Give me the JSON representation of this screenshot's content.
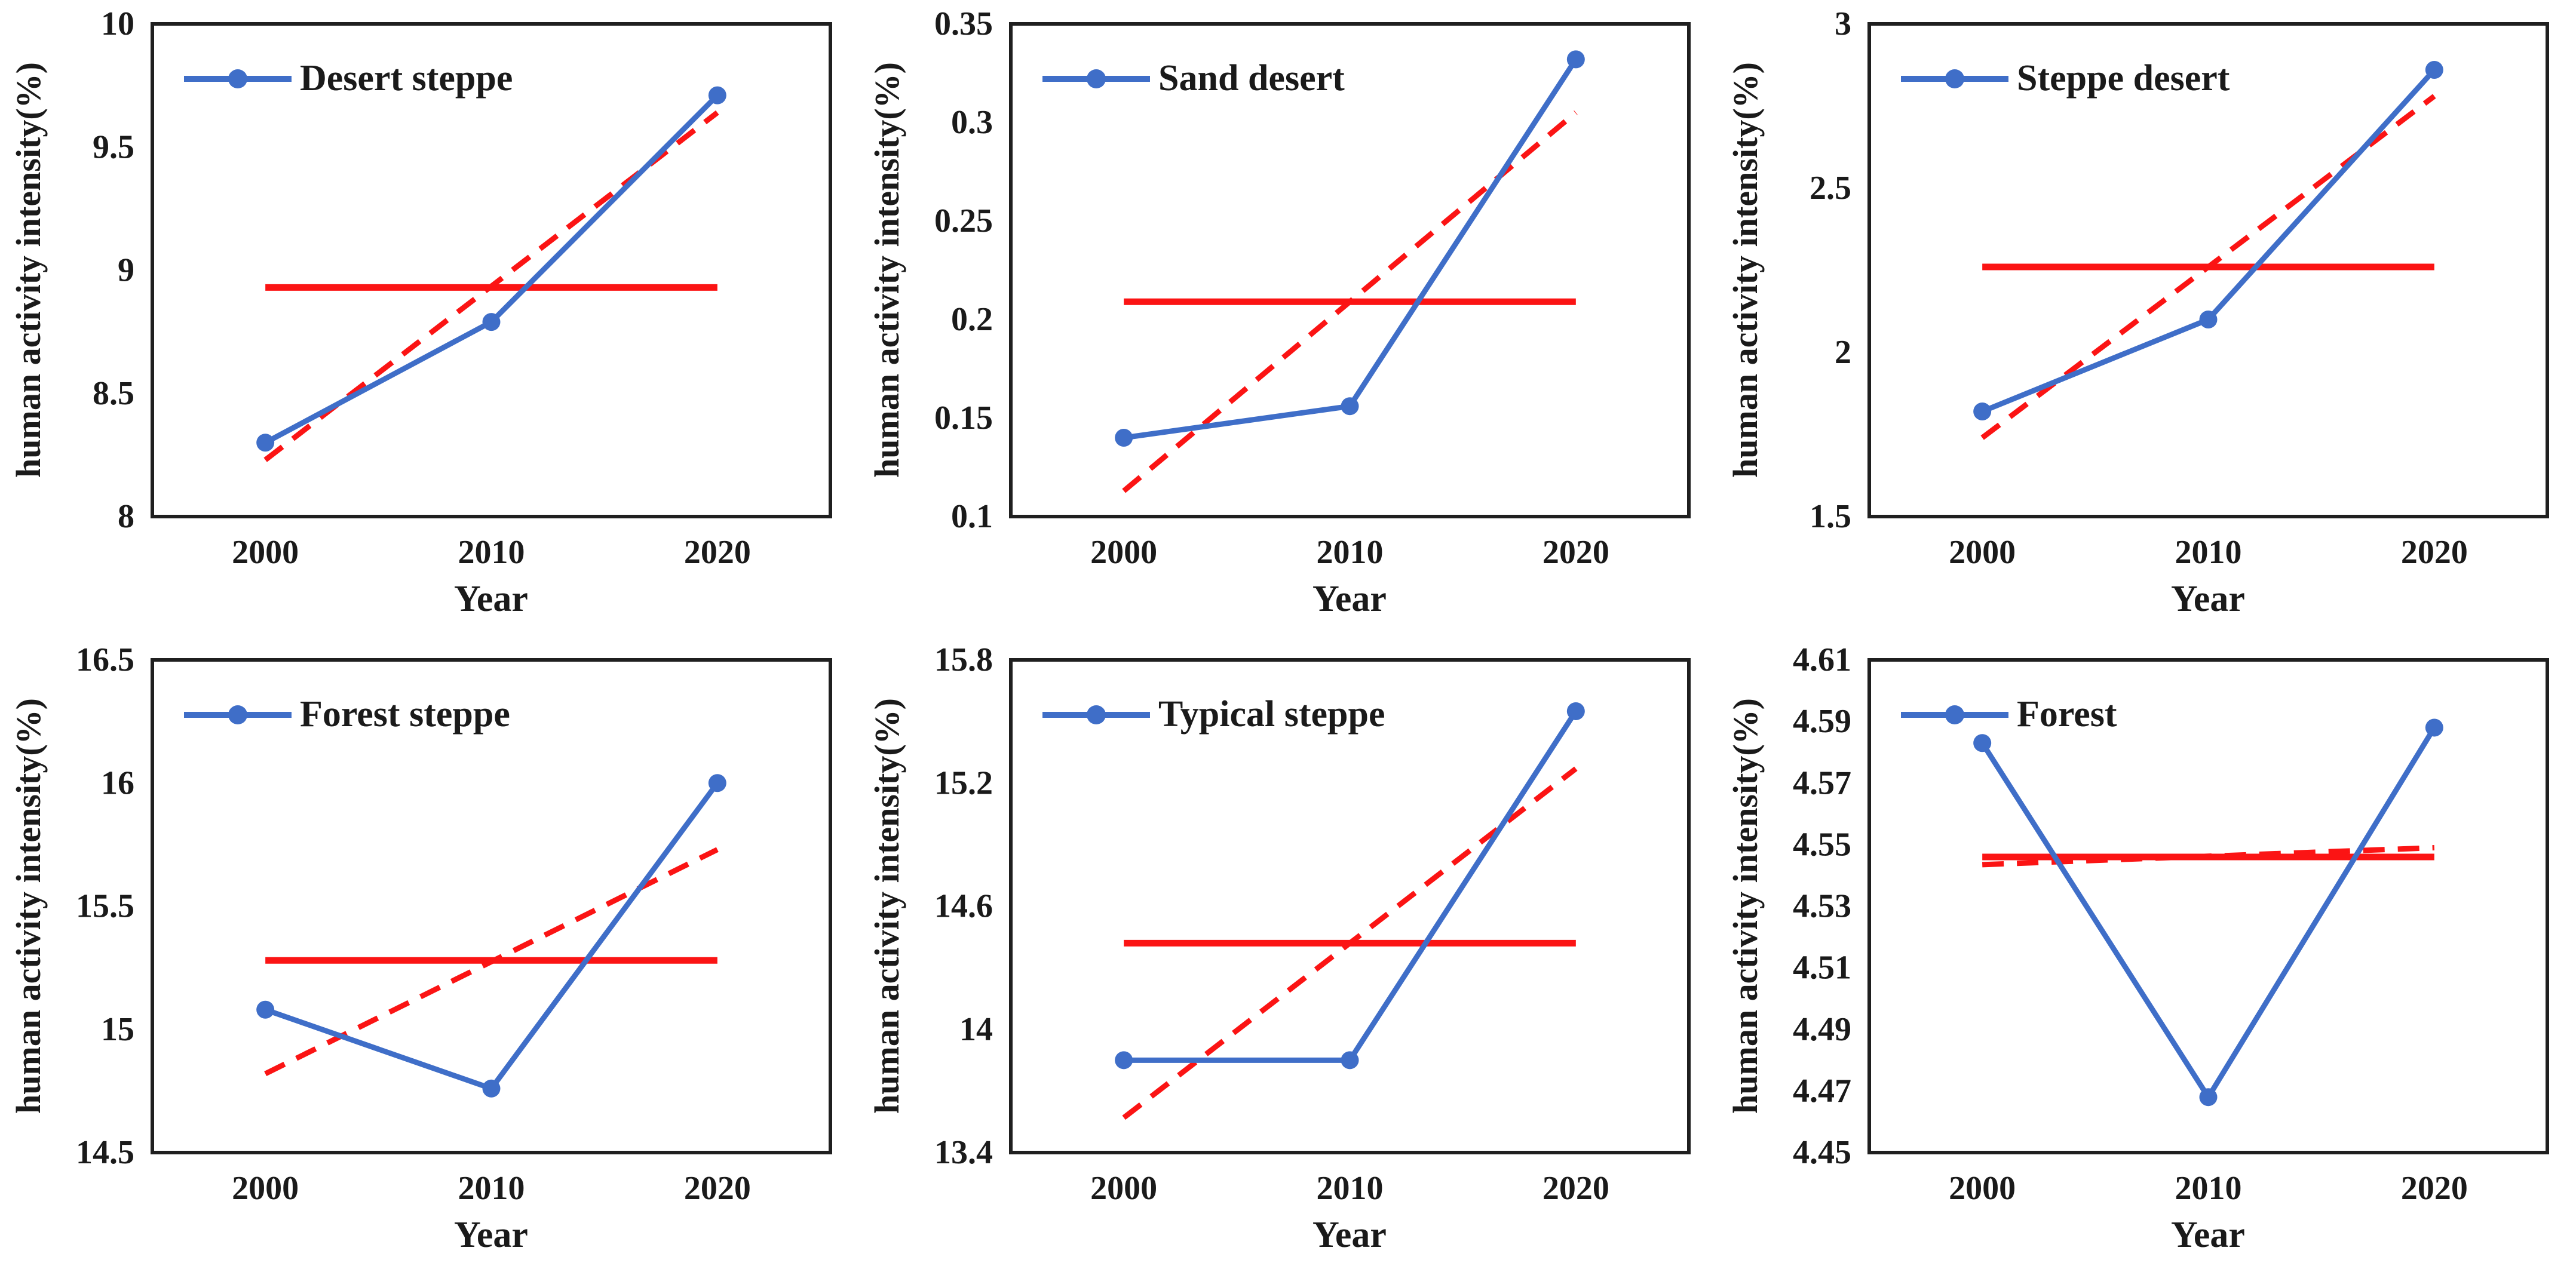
{
  "figure": {
    "background": "#ffffff",
    "grid_layout": "3 columns x 2 rows",
    "shared_ylabel": "human activity intensity(%)",
    "shared_xlabel": "Year",
    "categories": [
      "2000",
      "2010",
      "2020"
    ]
  },
  "colors": {
    "series_blue": "#3F6EC8",
    "trend_red": "#FB1414",
    "axis_black": "#1f1f1f",
    "text_black": "#1a1a1a"
  },
  "chart_data": [
    {
      "type": "line",
      "label": "Desert steppe",
      "x": [
        "2000",
        "2010",
        "2020"
      ],
      "values": [
        8.3,
        8.79,
        9.71
      ],
      "mean": 8.93,
      "trend": [
        8.23,
        9.64
      ],
      "ylim": [
        8,
        10
      ],
      "yticks": [
        "8",
        "8.5",
        "9",
        "9.5",
        "10"
      ],
      "xlabel": "Year",
      "ylabel": "human activity intensity(%)",
      "legend_position": "top-left",
      "grid": false
    },
    {
      "type": "line",
      "label": "Sand desert",
      "x": [
        "2000",
        "2010",
        "2020"
      ],
      "values": [
        0.14,
        0.156,
        0.332
      ],
      "mean": 0.209,
      "trend": [
        0.113,
        0.305
      ],
      "ylim": [
        0.1,
        0.35
      ],
      "yticks": [
        "0.1",
        "0.15",
        "0.2",
        "0.25",
        "0.3",
        "0.35"
      ],
      "xlabel": "Year",
      "ylabel": "human activity intensity(%)",
      "legend_position": "top-left",
      "grid": false
    },
    {
      "type": "line",
      "label": "Steppe desert",
      "x": [
        "2000",
        "2010",
        "2020"
      ],
      "values": [
        1.82,
        2.1,
        2.86
      ],
      "mean": 2.26,
      "trend": [
        1.74,
        2.78
      ],
      "ylim": [
        1.5,
        3
      ],
      "yticks": [
        "1.5",
        "2",
        "2.5",
        "3"
      ],
      "xlabel": "Year",
      "ylabel": "human activity intensity(%)",
      "legend_position": "top-left",
      "grid": false
    },
    {
      "type": "line",
      "label": "Forest steppe",
      "x": [
        "2000",
        "2010",
        "2020"
      ],
      "values": [
        15.08,
        14.76,
        16.0
      ],
      "mean": 15.28,
      "trend": [
        14.82,
        15.73
      ],
      "ylim": [
        14.5,
        16.5
      ],
      "yticks": [
        "14.5",
        "15",
        "15.5",
        "16",
        "16.5"
      ],
      "xlabel": "Year",
      "ylabel": "human activity intensity(%)",
      "legend_position": "top-left",
      "grid": false
    },
    {
      "type": "line",
      "label": "Typical steppe",
      "x": [
        "2000",
        "2010",
        "2020"
      ],
      "values": [
        13.85,
        13.85,
        15.55
      ],
      "mean": 14.42,
      "trend": [
        13.57,
        15.27
      ],
      "ylim": [
        13.4,
        15.8
      ],
      "yticks": [
        "13.4",
        "14",
        "14.6",
        "15.2",
        "15.8"
      ],
      "xlabel": "Year",
      "ylabel": "human activity intensity(%)",
      "legend_position": "top-left",
      "grid": false
    },
    {
      "type": "line",
      "label": "Forest",
      "x": [
        "2000",
        "2010",
        "2020"
      ],
      "values": [
        4.583,
        4.468,
        4.588
      ],
      "mean": 4.546,
      "trend": [
        4.5435,
        4.549
      ],
      "ylim": [
        4.45,
        4.61
      ],
      "yticks": [
        "4.45",
        "4.47",
        "4.49",
        "4.51",
        "4.53",
        "4.55",
        "4.57",
        "4.59",
        "4.61"
      ],
      "xlabel": "Year",
      "ylabel": "human activity intensity(%)",
      "legend_position": "top-left",
      "grid": false
    }
  ]
}
